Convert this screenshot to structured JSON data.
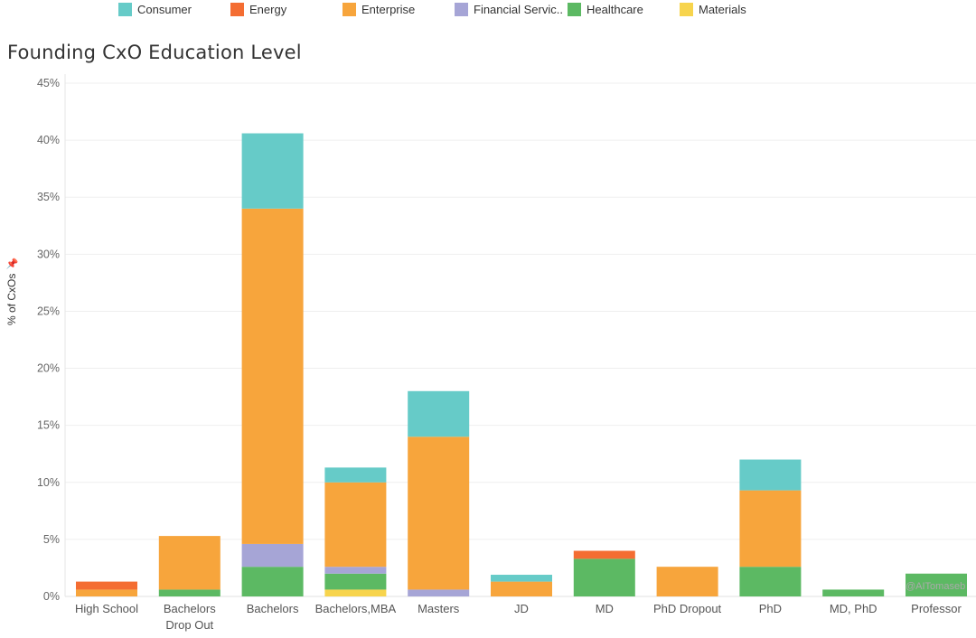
{
  "colors": {
    "Consumer": "#66cbc8",
    "Energy": "#f46d32",
    "Enterprise": "#f7a53c",
    "Financial Services": "#a6a5d6",
    "Healthcare": "#5cb963",
    "Materials": "#f7d44d"
  },
  "legend": [
    {
      "key": "Consumer",
      "label": "Consumer"
    },
    {
      "key": "Energy",
      "label": "Energy"
    },
    {
      "key": "Enterprise",
      "label": "Enterprise"
    },
    {
      "key": "Financial Services",
      "label": "Financial Servic.."
    },
    {
      "key": "Healthcare",
      "label": "Healthcare"
    },
    {
      "key": "Materials",
      "label": "Materials"
    }
  ],
  "watermark": "@AITomaseb",
  "chart_data": {
    "type": "bar",
    "stacked": true,
    "title": "Founding CxO Education Level",
    "xlabel": "",
    "ylabel": "% of CxOs",
    "ylim": [
      0,
      45
    ],
    "yticks": [
      0,
      5,
      10,
      15,
      20,
      25,
      30,
      35,
      40,
      45
    ],
    "ytick_labels": [
      "0%",
      "5%",
      "10%",
      "15%",
      "20%",
      "25%",
      "30%",
      "35%",
      "40%",
      "45%"
    ],
    "categories": [
      [
        "High School"
      ],
      [
        "Bachelors",
        "Drop Out"
      ],
      [
        "Bachelors"
      ],
      [
        "Bachelors,MBA"
      ],
      [
        "Masters"
      ],
      [
        "JD"
      ],
      [
        "MD"
      ],
      [
        "PhD Dropout"
      ],
      [
        "PhD"
      ],
      [
        "MD, PhD"
      ],
      [
        "Professor"
      ]
    ],
    "series": [
      {
        "name": "Materials",
        "values": [
          0,
          0,
          0,
          0.6,
          0,
          0,
          0,
          0,
          0,
          0,
          0
        ]
      },
      {
        "name": "Healthcare",
        "values": [
          0,
          0.6,
          2.6,
          1.4,
          0,
          0,
          3.3,
          0,
          2.6,
          0.6,
          2
        ]
      },
      {
        "name": "Financial Services",
        "values": [
          0,
          0,
          2.0,
          0.6,
          0.6,
          0,
          0,
          0,
          0,
          0,
          0
        ]
      },
      {
        "name": "Enterprise",
        "values": [
          0.6,
          4.7,
          29.4,
          7.4,
          13.4,
          1.3,
          0,
          2.6,
          6.7,
          0,
          0
        ]
      },
      {
        "name": "Energy",
        "values": [
          0.7,
          0,
          0,
          0,
          0,
          0,
          0.7,
          0,
          0,
          0,
          0
        ]
      },
      {
        "name": "Consumer",
        "values": [
          0,
          0,
          6.6,
          1.3,
          4.0,
          0.6,
          0,
          0,
          2.7,
          0,
          0
        ]
      }
    ]
  }
}
